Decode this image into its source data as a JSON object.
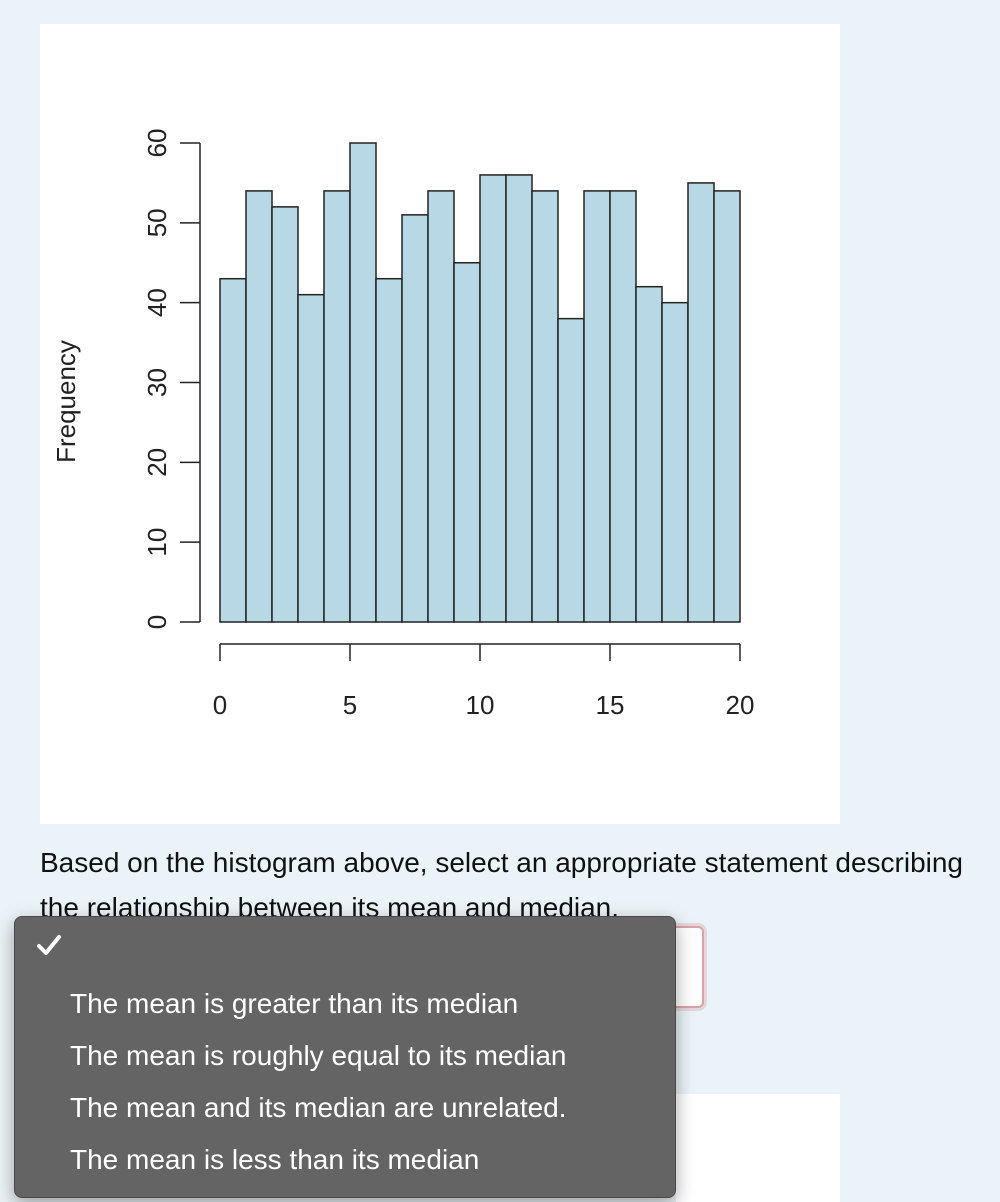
{
  "chart_data": {
    "type": "histogram",
    "title": "",
    "xlabel": "",
    "ylabel": "Frequency",
    "bin_edges": [
      0,
      1,
      2,
      3,
      4,
      5,
      6,
      7,
      8,
      9,
      10,
      11,
      12,
      13,
      14,
      15,
      16,
      17,
      18,
      19,
      20
    ],
    "values": [
      43,
      54,
      52,
      41,
      54,
      60,
      43,
      51,
      54,
      45,
      56,
      56,
      54,
      38,
      54,
      54,
      42,
      40,
      55,
      54
    ],
    "x_ticks": [
      0,
      5,
      10,
      15,
      20
    ],
    "y_ticks": [
      0,
      10,
      20,
      30,
      40,
      50,
      60
    ],
    "xlim": [
      0,
      20
    ],
    "ylim": [
      0,
      60
    ],
    "bar_color": "#b7d8e4",
    "grid": false
  },
  "question": {
    "text": "Based on the histogram above, select an appropriate statement describing the relationship between its mean and median."
  },
  "dropdown": {
    "selected": "",
    "options": [
      "",
      "The mean is greater than its median",
      "The mean is roughly equal to its median",
      "The mean and its median are unrelated.",
      "The mean is less than its median"
    ]
  }
}
